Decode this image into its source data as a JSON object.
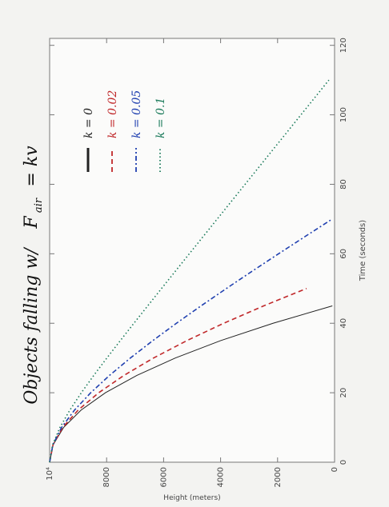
{
  "chart_data": {
    "type": "line",
    "title": "Objects falling w/",
    "force_symbol": "F",
    "force_subscript": "air",
    "force_rhs": "= kv",
    "x_label": "Time (seconds)",
    "y_label": "Height (meters)",
    "x": [
      0,
      5,
      10,
      15,
      20,
      25,
      30,
      35,
      40,
      45,
      50,
      55,
      60,
      65,
      70,
      80,
      90,
      100,
      110
    ],
    "series": [
      {
        "name": "k = 0",
        "color": "#222222",
        "dash": "none",
        "values": [
          10000,
          9878,
          9510,
          8898,
          8040,
          6938,
          5590,
          3998,
          2160,
          78,
          null,
          null,
          null,
          null,
          null,
          null,
          null,
          null,
          null
        ]
      },
      {
        "name": "k = 0.02",
        "color": "#c0282a",
        "dash": "6 4",
        "values": [
          10000,
          9881,
          9541,
          9000,
          8277,
          7390,
          6354,
          5184,
          3891,
          2489,
          984,
          null,
          null,
          null,
          null,
          null,
          null,
          null,
          null
        ]
      },
      {
        "name": "k = 0.05",
        "color": "#2040b0",
        "dash": "6 3 2 3",
        "values": [
          10000,
          9887,
          9582,
          9128,
          8558,
          7897,
          7165,
          6379,
          5550,
          4687,
          3798,
          2890,
          1965,
          1028,
          82,
          null,
          null,
          null,
          null
        ]
      },
      {
        "name": "k = 0.1",
        "color": "#1a7a5a",
        "dash": "1.5 3",
        "values": [
          10000,
          9896,
          9639,
          9291,
          8887,
          8450,
          7991,
          7520,
          7042,
          6559,
          6073,
          5586,
          5098,
          4608,
          4119,
          3140,
          2160,
          1180,
          200
        ]
      }
    ],
    "xlim": [
      0,
      122
    ],
    "xticks": [
      0,
      20,
      40,
      60,
      80,
      100,
      120
    ],
    "ylim": [
      0,
      10000
    ],
    "yticks": [
      0,
      2000,
      4000,
      6000,
      8000,
      {
        "value": 10000,
        "label": "10⁴"
      }
    ]
  }
}
